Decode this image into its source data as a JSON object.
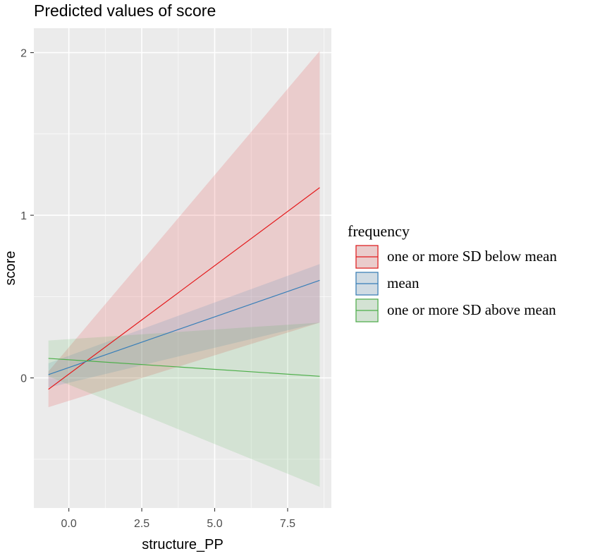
{
  "chart_data": {
    "type": "line",
    "title": "Predicted values of score",
    "xlabel": "structure_PP",
    "ylabel": "score",
    "xlim": [
      -1.2,
      9.0
    ],
    "ylim": [
      -0.8,
      2.15
    ],
    "x_ticks": [
      0.0,
      2.5,
      5.0,
      7.5
    ],
    "x_tick_labels": [
      "0.0",
      "2.5",
      "5.0",
      "7.5"
    ],
    "y_ticks": [
      0,
      1,
      2
    ],
    "y_tick_labels": [
      "0",
      "1",
      "2"
    ],
    "grid": true,
    "legend": {
      "title": "frequency",
      "position": "right"
    },
    "series": [
      {
        "name": "one or more SD below mean",
        "color": "#e41a1c",
        "x": [
          -0.7,
          8.6
        ],
        "y": [
          -0.07,
          1.17
        ],
        "ci_low": [
          -0.18,
          0.34
        ],
        "ci_high": [
          0.04,
          2.01
        ]
      },
      {
        "name": "mean",
        "color": "#377eb8",
        "x": [
          -0.7,
          8.6
        ],
        "y": [
          0.02,
          0.6
        ],
        "ci_low": [
          -0.06,
          0.34
        ],
        "ci_high": [
          0.09,
          0.7
        ]
      },
      {
        "name": "one or more SD above mean",
        "color": "#4daf4a",
        "x": [
          -0.7,
          8.6
        ],
        "y": [
          0.12,
          0.01
        ],
        "ci_low": [
          0.01,
          -0.67
        ],
        "ci_high": [
          0.23,
          0.34
        ]
      }
    ]
  }
}
